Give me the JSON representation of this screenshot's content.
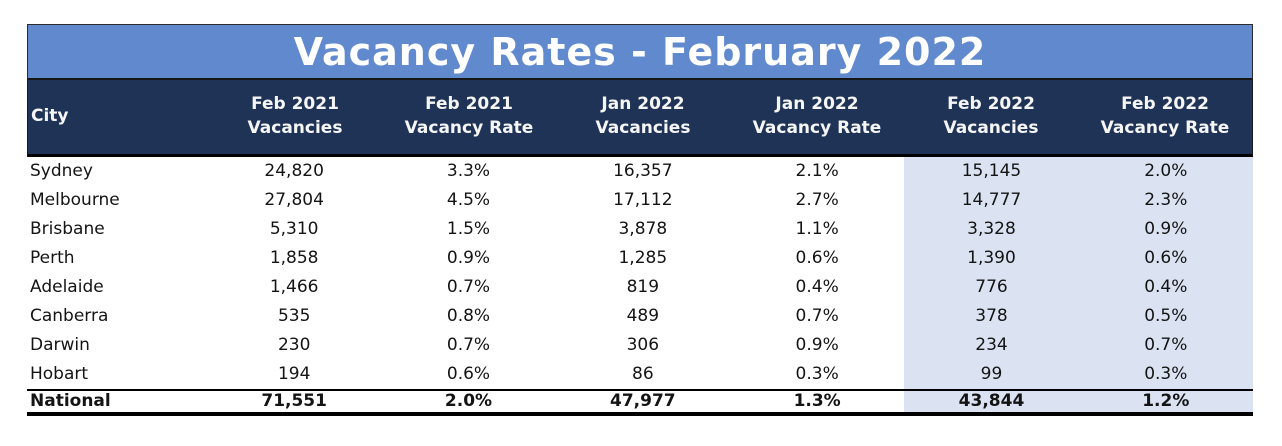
{
  "title": "Vacancy Rates - February 2022",
  "colors": {
    "title_bar_bg": "#6189CE",
    "header_row_bg": "#1E3356",
    "highlight_column_bg": "#DBE2F1",
    "title_text": "#FFFFFF",
    "body_text": "#141414",
    "border": "#000000"
  },
  "chart_data": {
    "type": "table",
    "title": "Vacancy Rates - February 2022",
    "columns": [
      "City",
      "Feb 2021\nVacancies",
      "Feb 2021\nVacancy Rate",
      "Jan 2022\nVacancies",
      "Jan 2022\nVacancy Rate",
      "Feb 2022\nVacancies",
      "Feb 2022\nVacancy Rate"
    ],
    "rows": [
      [
        "Sydney",
        "24,820",
        "3.3%",
        "16,357",
        "2.1%",
        "15,145",
        "2.0%"
      ],
      [
        "Melbourne",
        "27,804",
        "4.5%",
        "17,112",
        "2.7%",
        "14,777",
        "2.3%"
      ],
      [
        "Brisbane",
        "5,310",
        "1.5%",
        "3,878",
        "1.1%",
        "3,328",
        "0.9%"
      ],
      [
        "Perth",
        "1,858",
        "0.9%",
        "1,285",
        "0.6%",
        "1,390",
        "0.6%"
      ],
      [
        "Adelaide",
        "1,466",
        "0.7%",
        "819",
        "0.4%",
        "776",
        "0.4%"
      ],
      [
        "Canberra",
        "535",
        "0.8%",
        "489",
        "0.7%",
        "378",
        "0.5%"
      ],
      [
        "Darwin",
        "230",
        "0.7%",
        "306",
        "0.9%",
        "234",
        "0.7%"
      ],
      [
        "Hobart",
        "194",
        "0.6%",
        "86",
        "0.3%",
        "99",
        "0.3%"
      ]
    ],
    "total_row": [
      "National",
      "71,551",
      "2.0%",
      "47,977",
      "1.3%",
      "43,844",
      "1.2%"
    ],
    "highlighted_columns": [
      "Feb 2022 Vacancies",
      "Feb 2022 Vacancy Rate"
    ],
    "layout": {
      "grid": "off",
      "total_row_bold": true,
      "numeric_alignment": "center"
    }
  }
}
